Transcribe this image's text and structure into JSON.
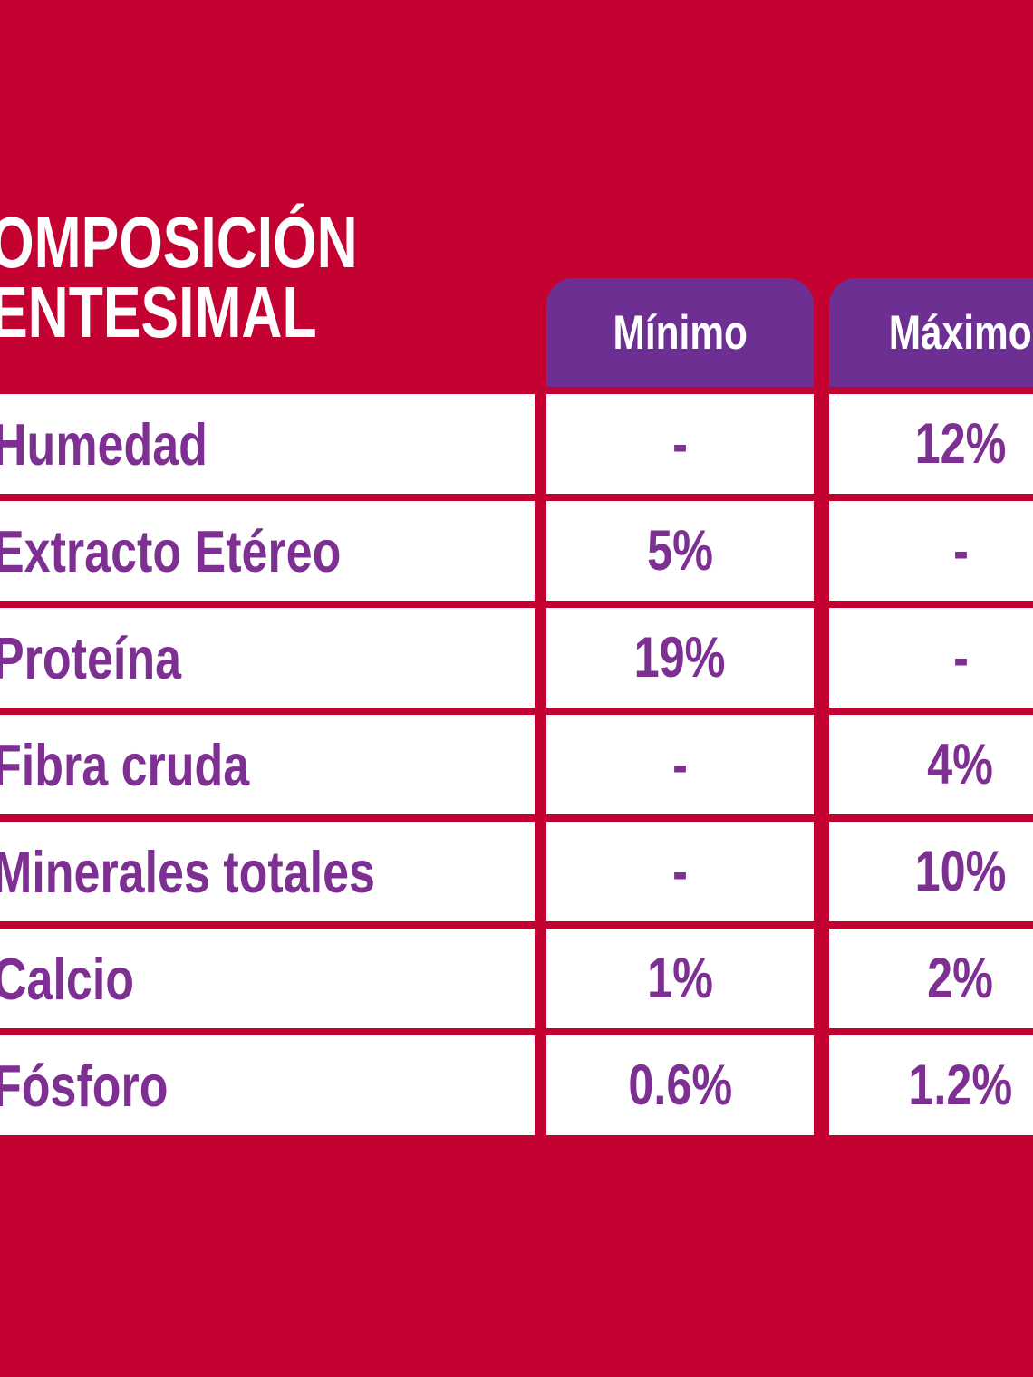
{
  "colors": {
    "background_red": "#C40232",
    "header_purple": "#6E2F92",
    "text_purple": "#7D3092",
    "cell_white": "#FFFFFF",
    "title_white": "#FFFFFF"
  },
  "title": {
    "line1": "COMPOSICIÓN",
    "line2": "CENTESIMAL"
  },
  "table": {
    "columns": [
      {
        "label": "Mínimo"
      },
      {
        "label": "Máximo"
      }
    ],
    "rows": [
      {
        "label": "Humedad",
        "minimo": "-",
        "maximo": "12%"
      },
      {
        "label": "Extracto Etéreo",
        "minimo": "5%",
        "maximo": "-"
      },
      {
        "label": "Proteína",
        "minimo": "19%",
        "maximo": "-"
      },
      {
        "label": "Fibra cruda",
        "minimo": "-",
        "maximo": "4%"
      },
      {
        "label": "Minerales totales",
        "minimo": "-",
        "maximo": "10%"
      },
      {
        "label": "Calcio",
        "minimo": "1%",
        "maximo": "2%"
      },
      {
        "label": "Fósforo",
        "minimo": "0.6%",
        "maximo": "1.2%"
      }
    ]
  },
  "chart_data": {
    "type": "table",
    "title": "COMPOSICIÓN CENTESIMAL",
    "columns": [
      "",
      "Mínimo",
      "Máximo"
    ],
    "rows": [
      [
        "Humedad",
        "-",
        "12%"
      ],
      [
        "Extracto Etéreo",
        "5%",
        "-"
      ],
      [
        "Proteína",
        "19%",
        "-"
      ],
      [
        "Fibra cruda",
        "-",
        "4%"
      ],
      [
        "Minerales totales",
        "-",
        "10%"
      ],
      [
        "Calcio",
        "1%",
        "2%"
      ],
      [
        "Fósforo",
        "0.6%",
        "1.2%"
      ]
    ]
  }
}
